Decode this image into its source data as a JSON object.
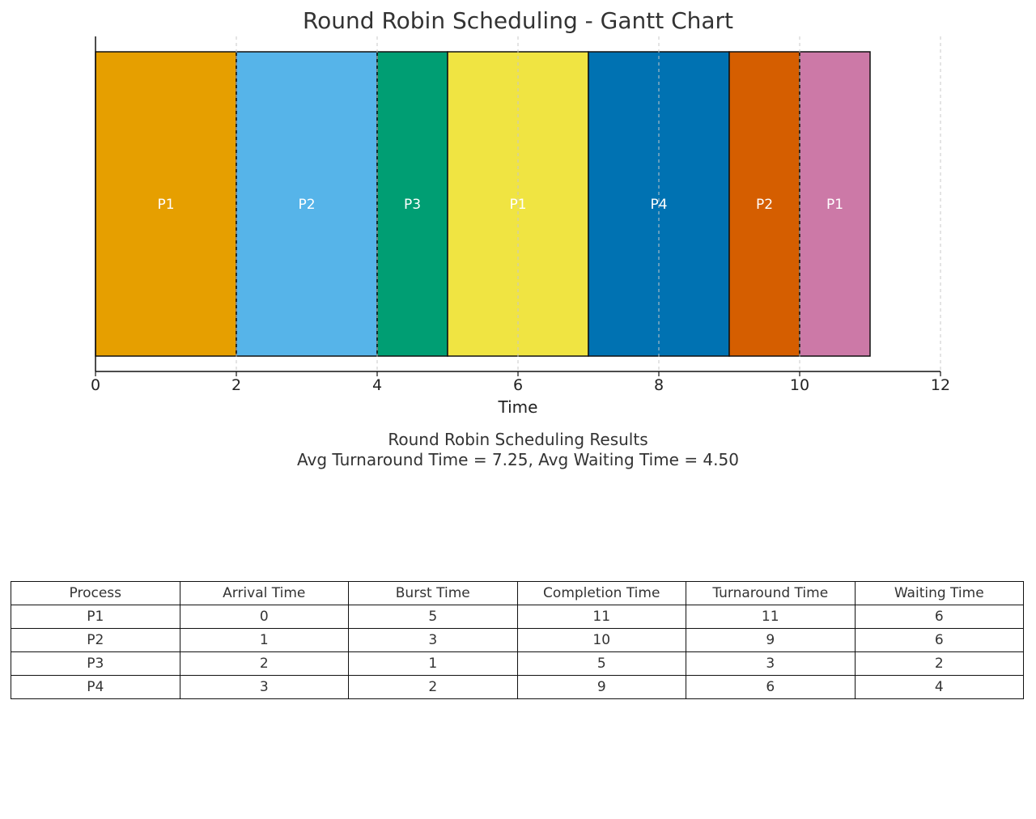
{
  "chart_data": {
    "type": "gantt",
    "title": "Round Robin Scheduling - Gantt Chart",
    "xlabel": "Time",
    "xlim": [
      0,
      12
    ],
    "xticks": [
      "0",
      "2",
      "4",
      "6",
      "8",
      "10",
      "12"
    ],
    "grid": "vertical dashed",
    "segments": [
      {
        "label": "P1",
        "start": 0,
        "end": 2,
        "color": "#E69F00"
      },
      {
        "label": "P2",
        "start": 2,
        "end": 4,
        "color": "#56B4E9"
      },
      {
        "label": "P3",
        "start": 4,
        "end": 5,
        "color": "#009E73"
      },
      {
        "label": "P1",
        "start": 5,
        "end": 7,
        "color": "#F0E442"
      },
      {
        "label": "P4",
        "start": 7,
        "end": 9,
        "color": "#0072B2"
      },
      {
        "label": "P2",
        "start": 9,
        "end": 10,
        "color": "#D55E00"
      },
      {
        "label": "P1",
        "start": 10,
        "end": 11,
        "color": "#CC79A7"
      }
    ]
  },
  "results": {
    "title": "Round Robin Scheduling Results",
    "averages": "Avg Turnaround Time = 7.25, Avg Waiting Time = 4.50",
    "columns": [
      "Process",
      "Arrival Time",
      "Burst Time",
      "Completion Time",
      "Turnaround Time",
      "Waiting Time"
    ],
    "rows": [
      [
        "P1",
        "0",
        "5",
        "11",
        "11",
        "6"
      ],
      [
        "P2",
        "1",
        "3",
        "10",
        "9",
        "6"
      ],
      [
        "P3",
        "2",
        "1",
        "5",
        "3",
        "2"
      ],
      [
        "P4",
        "3",
        "2",
        "9",
        "6",
        "4"
      ]
    ]
  }
}
